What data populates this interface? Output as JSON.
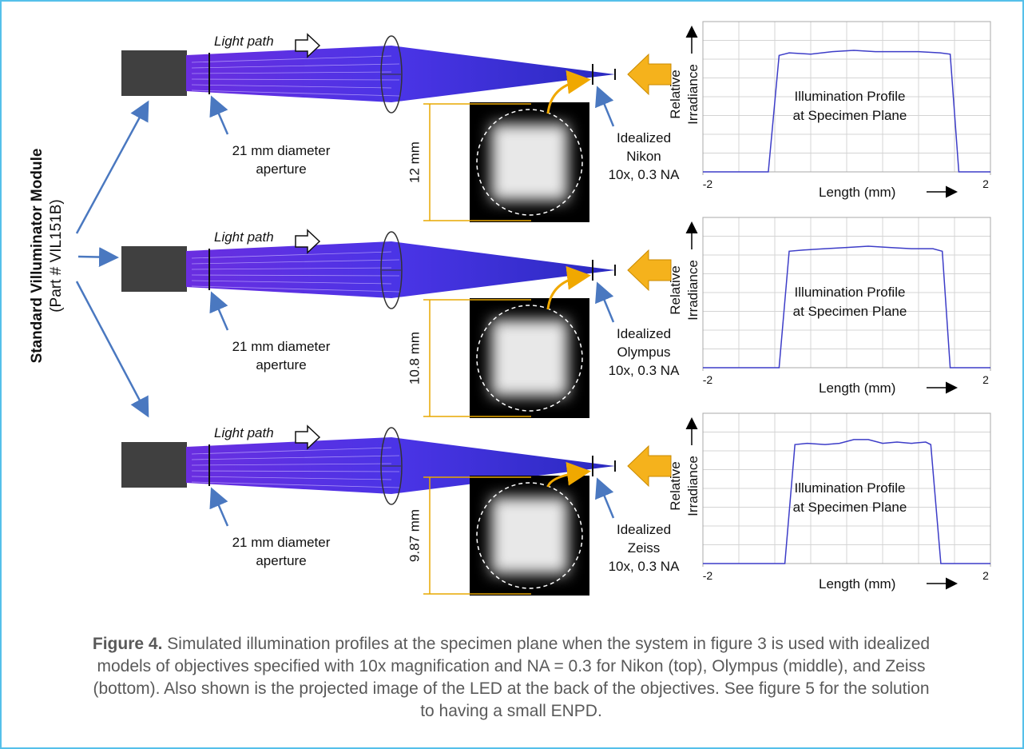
{
  "side_label": {
    "title": "Standard Villuminator  Module",
    "subtitle": "(Part # VIL151B)"
  },
  "rows": [
    {
      "light_path": "Light path",
      "aperture": [
        "21 mm diameter",
        "aperture"
      ],
      "objective": [
        "Idealized",
        "Nikon",
        "10x, 0.3 NA"
      ],
      "image_size": "12 mm",
      "profile": {
        "type": "line",
        "y_label": [
          "Relative",
          "Irradiance"
        ],
        "annotation": [
          "Illumination Profile",
          "at Specimen Plane"
        ],
        "x_label": "Length (mm)",
        "xlim": [
          -2,
          2
        ],
        "xticks": [
          -2,
          2
        ],
        "ylim": [
          0,
          1.2
        ],
        "color": "#3d3dc8",
        "x": [
          -2,
          -1.09,
          -0.94,
          -0.8,
          -0.5,
          -0.2,
          0.1,
          0.4,
          0.7,
          1.0,
          1.3,
          1.44,
          1.56,
          2
        ],
        "values": [
          0,
          0,
          0.93,
          0.95,
          0.94,
          0.96,
          0.97,
          0.96,
          0.96,
          0.96,
          0.95,
          0.94,
          0,
          0
        ]
      }
    },
    {
      "light_path": "Light path",
      "aperture": [
        "21 mm diameter",
        "aperture"
      ],
      "objective": [
        "Idealized",
        "Olympus",
        "10x, 0.3 NA"
      ],
      "image_size": "10.8 mm",
      "profile": {
        "type": "line",
        "y_label": [
          "Relative",
          "Irradiance"
        ],
        "annotation": [
          "Illumination Profile",
          "at Specimen Plane"
        ],
        "x_label": "Length (mm)",
        "xlim": [
          -2,
          2
        ],
        "xticks": [
          -2,
          2
        ],
        "ylim": [
          0,
          1.2
        ],
        "color": "#3d3dc8",
        "x": [
          -2,
          -0.94,
          -0.8,
          -0.6,
          -0.3,
          0,
          0.3,
          0.6,
          0.9,
          1.2,
          1.33,
          1.44,
          2
        ],
        "values": [
          0,
          0,
          0.93,
          0.94,
          0.95,
          0.96,
          0.97,
          0.96,
          0.95,
          0.95,
          0.93,
          0,
          0
        ]
      }
    },
    {
      "light_path": "Light path",
      "aperture": [
        "21 mm diameter",
        "aperture"
      ],
      "objective": [
        "Idealized",
        "Zeiss",
        "10x, 0.3 NA"
      ],
      "image_size": "9.87 mm",
      "profile": {
        "type": "line",
        "y_label": [
          "Relative",
          "Irradiance"
        ],
        "annotation": [
          "Illumination Profile",
          "at Specimen Plane"
        ],
        "x_label": "Length (mm)",
        "xlim": [
          -2,
          2
        ],
        "xticks": [
          -2,
          2
        ],
        "ylim": [
          0,
          1.2
        ],
        "color": "#3d3dc8",
        "x": [
          -2,
          -0.86,
          -0.72,
          -0.55,
          -0.3,
          -0.1,
          0.1,
          0.3,
          0.5,
          0.7,
          0.9,
          1.1,
          1.17,
          1.31,
          2
        ],
        "values": [
          0,
          0,
          0.95,
          0.96,
          0.95,
          0.96,
          0.99,
          0.99,
          0.96,
          0.97,
          0.96,
          0.97,
          0.95,
          0,
          0
        ]
      }
    }
  ],
  "caption": {
    "label": "Figure 4.",
    "text": "Simulated illumination profiles at the specimen plane when the system in figure 3 is used with idealized models of objectives specified with 10x magnification and NA = 0.3 for Nikon (top), Olympus (middle), and Zeiss (bottom). Also shown is the projected image of the LED at the back of the objectives. See figure 5 for the solution to having a small ENPD."
  }
}
